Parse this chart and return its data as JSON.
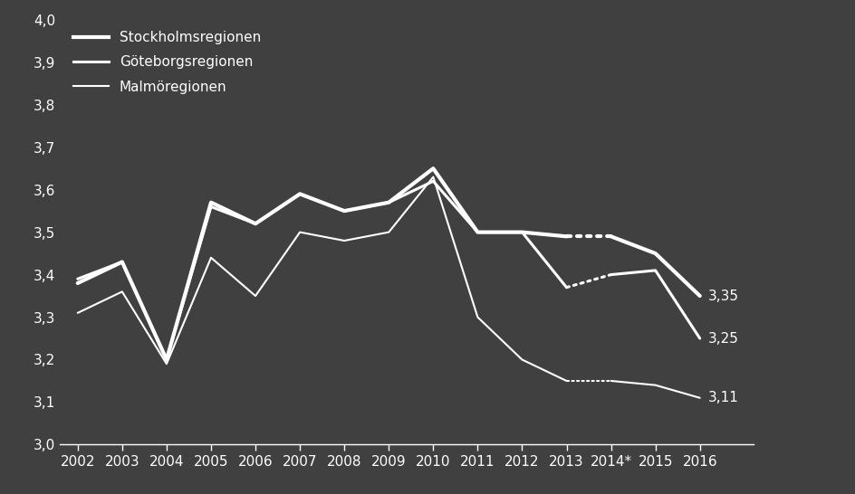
{
  "years_main": [
    2002,
    2003,
    2004,
    2005,
    2006,
    2007,
    2008,
    2009,
    2010,
    2011,
    2012,
    2013
  ],
  "years_dotted": [
    2013,
    2014
  ],
  "years_after": [
    2014,
    2015,
    2016
  ],
  "stockholm": [
    3.38,
    3.43,
    3.2,
    3.57,
    3.52,
    3.59,
    3.55,
    3.57,
    3.65,
    3.5,
    3.5,
    3.49
  ],
  "stockholm_dotted": [
    3.49,
    3.49
  ],
  "stockholm_after": [
    3.49,
    3.45,
    3.35
  ],
  "goteborg": [
    3.39,
    3.43,
    3.2,
    3.56,
    3.52,
    3.59,
    3.55,
    3.57,
    3.62,
    3.5,
    3.5,
    3.37
  ],
  "goteborg_dotted": [
    3.37,
    3.4
  ],
  "goteborg_after": [
    3.4,
    3.41,
    3.25
  ],
  "malmo": [
    3.31,
    3.36,
    3.19,
    3.44,
    3.35,
    3.5,
    3.48,
    3.5,
    3.63,
    3.3,
    3.2,
    3.15
  ],
  "malmo_dotted": [
    3.15,
    3.15
  ],
  "malmo_after": [
    3.15,
    3.14,
    3.11
  ],
  "end_labels": [
    "3,35",
    "3,25",
    "3,11"
  ],
  "legend_labels": [
    "Stockholmsregionen",
    "Göteborgsregionen",
    "Malmöregionen"
  ],
  "line_color": "#ffffff",
  "bg_color": "#404040",
  "text_color": "#ffffff",
  "ylim": [
    3.0,
    4.0
  ],
  "yticks": [
    3.0,
    3.1,
    3.2,
    3.3,
    3.4,
    3.5,
    3.6,
    3.7,
    3.8,
    3.9,
    4.0
  ],
  "xtick_labels": [
    "2002",
    "2003",
    "2004",
    "2005",
    "2006",
    "2007",
    "2008",
    "2009",
    "2010",
    "2011",
    "2012",
    "2013",
    "2014*",
    "2015",
    "2016"
  ],
  "lw_thick": 3.0,
  "lw_medium": 2.2,
  "lw_thin": 1.5,
  "fontsize_ticks": 11,
  "fontsize_legend": 11,
  "fontsize_labels": 11
}
